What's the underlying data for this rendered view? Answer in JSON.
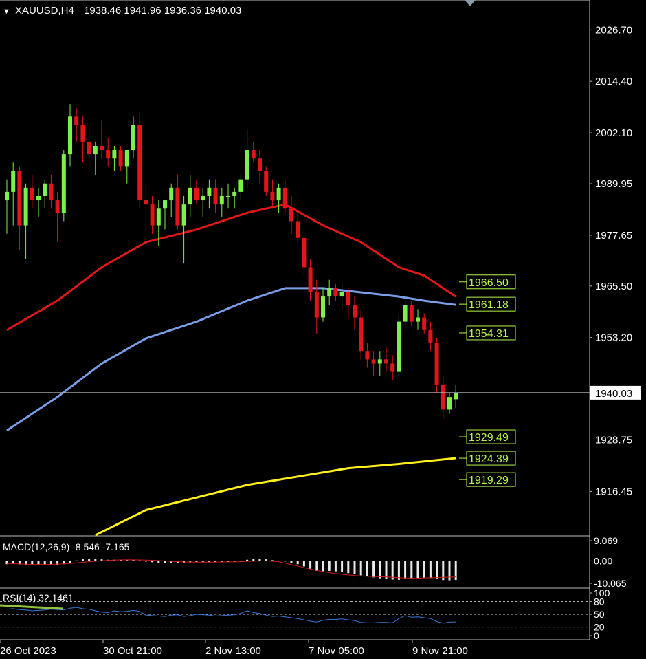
{
  "header": {
    "symbol": "XAUUSD,H4",
    "ohlc": "1938.46 1941.96 1936.36 1940.03"
  },
  "colors": {
    "bull": "#7df04a",
    "bear": "#e3141c",
    "ma_red": "#e01818",
    "ma_blue": "#7a9ee8",
    "ma_yellow": "#ffef1a",
    "tag_green": "#b6f54a",
    "grid": "#ffffff"
  },
  "chart_data": [
    {
      "type": "candlestick",
      "title": "XAUUSD,H4",
      "y_ticks": [
        "2026.70",
        "2014.40",
        "2002.10",
        "1989.95",
        "1977.65",
        "1965.50",
        "1953.20",
        "1940.03",
        "1928.75",
        "1916.45"
      ],
      "ylim": [
        1906.0,
        2033.0
      ],
      "x_ticks": [
        "26 Oct 2023",
        "30 Oct 21:00",
        "2 Nov 13:00",
        "7 Nov 05:00",
        "9 Nov 21:00"
      ],
      "current_price": "1940.03",
      "level_tags": [
        "1966.50",
        "1961.18",
        "1954.31",
        "1929.49",
        "1924.39",
        "1919.29"
      ],
      "candles": [
        [
          1986,
          1991,
          1978,
          1988
        ],
        [
          1988,
          1995,
          1980,
          1993
        ],
        [
          1993,
          1994,
          1974,
          1980
        ],
        [
          1980,
          1990,
          1972,
          1989
        ],
        [
          1989,
          1992,
          1984,
          1986
        ],
        [
          1986,
          1989,
          1982,
          1987
        ],
        [
          1987,
          1991,
          1984,
          1990
        ],
        [
          1990,
          1992,
          1984,
          1986
        ],
        [
          1986,
          1988,
          1976,
          1983
        ],
        [
          1983,
          1998,
          1981,
          1997
        ],
        [
          1997,
          2009,
          1994,
          2006
        ],
        [
          2006,
          2008,
          2000,
          2004
        ],
        [
          2004,
          2006,
          1995,
          2000
        ],
        [
          2000,
          2004,
          1993,
          1997
        ],
        [
          1997,
          2000,
          1992,
          1999
        ],
        [
          1999,
          2005,
          1996,
          1998
        ],
        [
          1998,
          2001,
          1994,
          1996
        ],
        [
          1996,
          1999,
          1993,
          1998
        ],
        [
          1998,
          1999,
          1993,
          1994
        ],
        [
          1994,
          1998,
          1990,
          1998
        ],
        [
          1998,
          2006,
          1996,
          2004
        ],
        [
          2004,
          2007,
          1984,
          1986
        ],
        [
          1986,
          1990,
          1978,
          1985
        ],
        [
          1985,
          1987,
          1978,
          1980
        ],
        [
          1980,
          1986,
          1975,
          1984
        ],
        [
          1984,
          1986,
          1979,
          1986
        ],
        [
          1986,
          1990,
          1982,
          1989
        ],
        [
          1989,
          1992,
          1979,
          1980
        ],
        [
          1980,
          1987,
          1971,
          1985
        ],
        [
          1985,
          1992,
          1982,
          1989
        ],
        [
          1989,
          1991,
          1985,
          1986
        ],
        [
          1986,
          1989,
          1982,
          1987
        ],
        [
          1987,
          1991,
          1984,
          1989
        ],
        [
          1989,
          1991,
          1983,
          1985
        ],
        [
          1985,
          1989,
          1982,
          1987
        ],
        [
          1987,
          1990,
          1984,
          1987
        ],
        [
          1987,
          1989,
          1984,
          1988
        ],
        [
          1988,
          1992,
          1986,
          1991
        ],
        [
          1991,
          2003,
          1989,
          1998
        ],
        [
          1998,
          2000,
          1995,
          1996
        ],
        [
          1996,
          1998,
          1990,
          1993
        ],
        [
          1993,
          1994,
          1987,
          1988
        ],
        [
          1988,
          1991,
          1984,
          1986
        ],
        [
          1986,
          1990,
          1983,
          1989
        ],
        [
          1989,
          1991,
          1983,
          1984
        ],
        [
          1984,
          1987,
          1978,
          1981
        ],
        [
          1981,
          1983,
          1976,
          1977
        ],
        [
          1977,
          1979,
          1968,
          1970
        ],
        [
          1970,
          1972,
          1962,
          1964
        ],
        [
          1964,
          1967,
          1954,
          1958
        ],
        [
          1958,
          1965,
          1957,
          1963
        ],
        [
          1963,
          1967,
          1961,
          1965
        ],
        [
          1965,
          1966,
          1962,
          1963
        ],
        [
          1963,
          1966,
          1960,
          1964
        ],
        [
          1964,
          1965,
          1958,
          1961
        ],
        [
          1961,
          1963,
          1955,
          1958
        ],
        [
          1958,
          1960,
          1948,
          1950
        ],
        [
          1950,
          1952,
          1946,
          1948
        ],
        [
          1948,
          1950,
          1944,
          1947
        ],
        [
          1947,
          1950,
          1944,
          1948
        ],
        [
          1948,
          1951,
          1945,
          1947
        ],
        [
          1947,
          1949,
          1943,
          1945
        ],
        [
          1945,
          1959,
          1944,
          1957
        ],
        [
          1957,
          1962,
          1955,
          1961
        ],
        [
          1961,
          1962,
          1956,
          1957
        ],
        [
          1957,
          1960,
          1955,
          1958
        ],
        [
          1958,
          1959,
          1954,
          1955
        ],
        [
          1955,
          1957,
          1950,
          1952
        ],
        [
          1952,
          1953,
          1940,
          1942
        ],
        [
          1942,
          1944,
          1934,
          1936
        ],
        [
          1936,
          1940,
          1935,
          1939
        ],
        [
          1938.46,
          1941.96,
          1936.36,
          1940.03
        ]
      ],
      "moving_averages": [
        {
          "color": "#e01818",
          "points": [
            [
              0,
              1955
            ],
            [
              8,
              1962
            ],
            [
              15,
              1970
            ],
            [
              22,
              1976
            ],
            [
              30,
              1979
            ],
            [
              38,
              1983
            ],
            [
              44,
              1985
            ],
            [
              50,
              1980
            ],
            [
              56,
              1976
            ],
            [
              62,
              1970
            ],
            [
              66,
              1968
            ],
            [
              71,
              1963
            ]
          ]
        },
        {
          "color": "#7a9ee8",
          "points": [
            [
              0,
              1931
            ],
            [
              8,
              1939
            ],
            [
              15,
              1947
            ],
            [
              22,
              1953
            ],
            [
              30,
              1957
            ],
            [
              38,
              1962
            ],
            [
              44,
              1965
            ],
            [
              50,
              1965
            ],
            [
              56,
              1964
            ],
            [
              62,
              1963
            ],
            [
              66,
              1962
            ],
            [
              71,
              1961
            ]
          ]
        },
        {
          "color": "#ffef1a",
          "points": [
            [
              14,
              1906
            ],
            [
              22,
              1912
            ],
            [
              30,
              1915
            ],
            [
              38,
              1918
            ],
            [
              46,
              1920
            ],
            [
              54,
              1922
            ],
            [
              62,
              1923
            ],
            [
              71,
              1924.4
            ]
          ]
        }
      ]
    },
    {
      "type": "bar",
      "title": "MACD(12,26,9) -8.546 -7.165",
      "y_ticks": [
        "9.069",
        "0.00",
        "-10.065"
      ],
      "ylim": [
        -10.065,
        9.069
      ],
      "histogram": [
        -1.5,
        -1.4,
        -1.6,
        -1.8,
        -1.9,
        -1.8,
        -1.7,
        -1.6,
        -1.8,
        -1.5,
        -0.8,
        0.2,
        0.8,
        0.9,
        0.9,
        0.7,
        0.5,
        0.5,
        0.4,
        0.3,
        0.4,
        0.2,
        -0.3,
        -0.6,
        -0.9,
        -1.0,
        -0.9,
        -0.8,
        -0.9,
        -0.7,
        -0.6,
        -0.6,
        -0.5,
        -0.5,
        -0.6,
        -0.5,
        -0.4,
        -0.2,
        0.5,
        1.0,
        1.0,
        0.7,
        0.3,
        0.1,
        -0.3,
        -0.8,
        -1.5,
        -2.5,
        -3.5,
        -4.5,
        -4.6,
        -4.5,
        -4.7,
        -5.0,
        -5.5,
        -6.0,
        -6.5,
        -7.0,
        -7.4,
        -7.8,
        -8.2,
        -8.4,
        -8.5,
        -8.0,
        -7.8,
        -7.6,
        -7.5,
        -7.7,
        -8.0,
        -8.6,
        -8.7,
        -8.546
      ],
      "signal": [
        -1.2,
        -1.4,
        -1.6,
        -1.6,
        -1.4,
        -1.0,
        -0.4,
        0.1,
        0.4,
        0.5,
        0.4,
        0.2,
        -0.2,
        -0.5,
        -0.6,
        -0.6,
        -0.5,
        -0.4,
        -0.2,
        0.0,
        -0.4,
        -1.8,
        -3.2,
        -4.6,
        -5.6,
        -6.3,
        -6.8,
        -7.0,
        -7.2,
        -7.6,
        -7.8,
        -7.6,
        -7.4,
        -7.165
      ]
    },
    {
      "type": "line",
      "title": "RSI(14) 32.1461",
      "y_ticks": [
        "100",
        "80",
        "50",
        "20",
        "0"
      ],
      "ylim": [
        0,
        100
      ],
      "values": [
        62,
        63,
        61,
        60,
        58,
        59,
        60,
        62,
        61,
        60,
        64,
        66,
        63,
        62,
        58,
        55,
        54,
        58,
        56,
        57,
        59,
        57,
        48,
        47,
        46,
        45,
        48,
        49,
        45,
        47,
        50,
        49,
        48,
        46,
        47,
        48,
        49,
        52,
        58,
        54,
        52,
        48,
        45,
        46,
        44,
        42,
        40,
        37,
        34,
        32,
        36,
        38,
        38,
        39,
        37,
        35,
        31,
        30,
        30,
        31,
        31,
        30,
        40,
        47,
        43,
        44,
        42,
        40,
        33,
        29,
        32,
        32.1461
      ]
    }
  ]
}
